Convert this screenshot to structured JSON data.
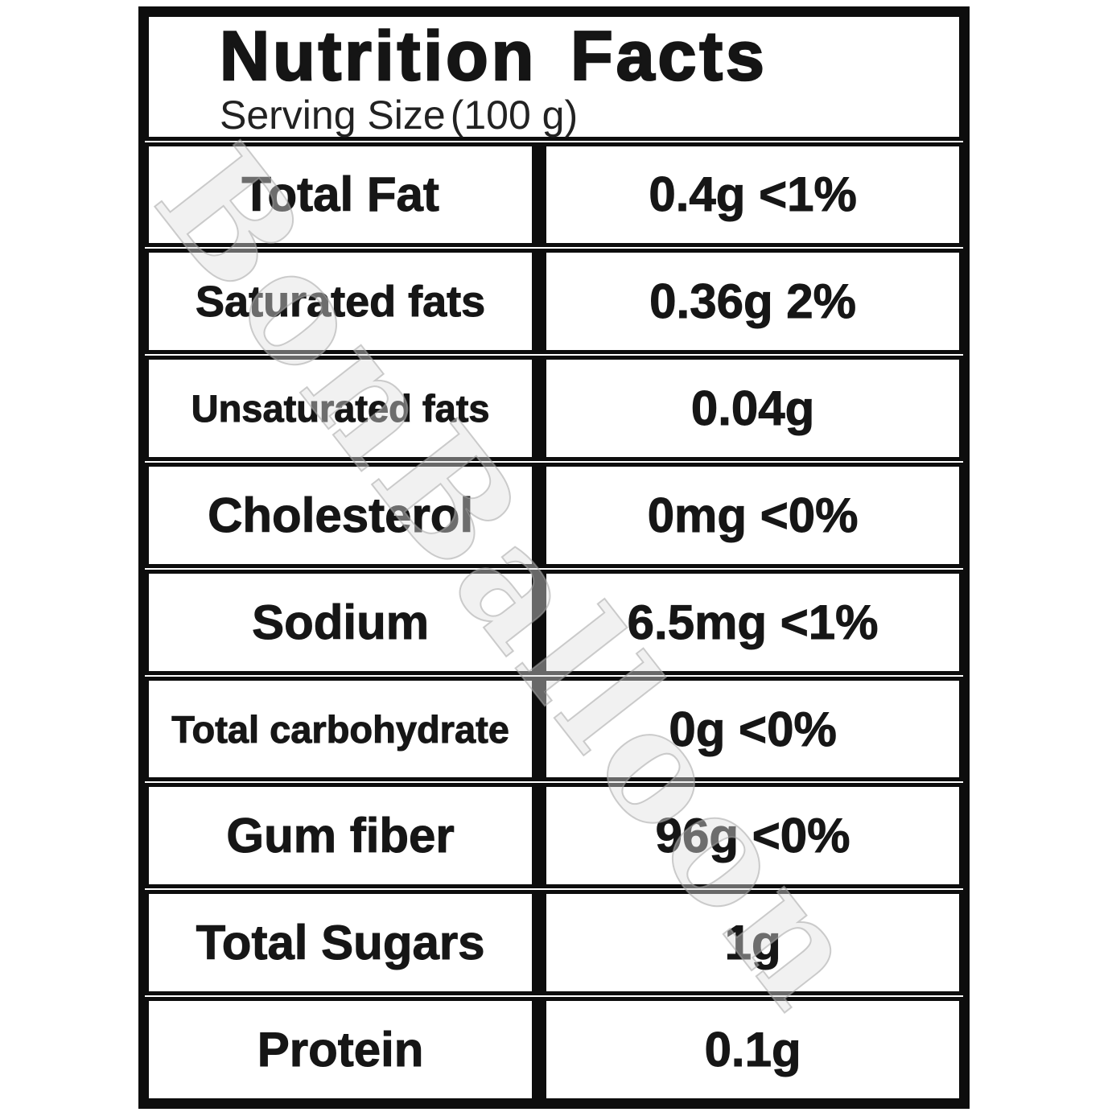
{
  "header": {
    "title": "Nutrition Facts",
    "serving_label": "Serving Size",
    "serving_value": "(100 g)"
  },
  "table": {
    "rows": [
      {
        "label": "Total Fat",
        "value": "0.4g <1%"
      },
      {
        "label": "Saturated fats",
        "value": "0.36g 2%"
      },
      {
        "label": "Unsaturated fats",
        "value": "0.04g"
      },
      {
        "label": "Cholesterol",
        "value": "0mg <0%"
      },
      {
        "label": "Sodium",
        "value": "6.5mg <1%"
      },
      {
        "label": "Total carbohydrate",
        "value": "0g <0%"
      },
      {
        "label": "Gum fiber",
        "value": "96g <0%"
      },
      {
        "label": "Total Sugars",
        "value": "1g"
      },
      {
        "label": "Protein",
        "value": "0.1g"
      }
    ]
  },
  "watermark": {
    "text": "BonBalloon"
  },
  "colors": {
    "border": "#0d0d0d",
    "background": "#ffffff",
    "text": "#161616",
    "watermark_stroke": "#a5a5a5"
  }
}
